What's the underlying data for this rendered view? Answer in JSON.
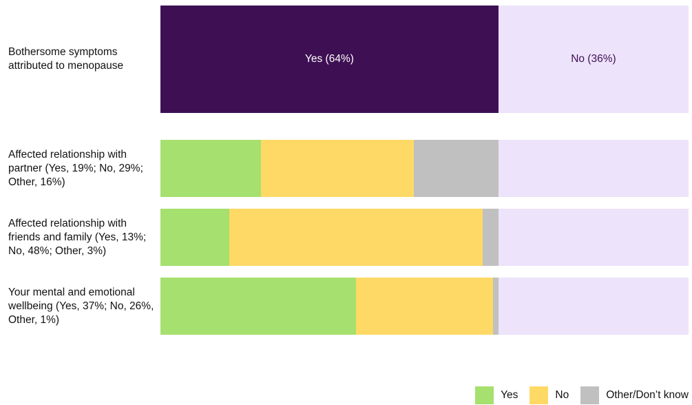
{
  "chart_data": {
    "type": "bar",
    "orientation": "horizontal",
    "xlim": [
      0,
      100
    ],
    "headline": {
      "category": "Bothersome symptoms attributed to menopause",
      "values": [
        64,
        36
      ],
      "value_labels": [
        "Yes (64%)",
        "No (36%)"
      ],
      "colors": [
        "#3e1053",
        "#ede3fa"
      ],
      "label_colors": [
        "#ffffff",
        "#3e1053"
      ]
    },
    "categories": [
      "Affected relationship with partner (Yes, 19%; No, 29%; Other, 16%)",
      "Affected relationship with friends and family (Yes, 13%; No, 48%; Other, 3%)",
      "Your mental and emotional wellbeing (Yes, 37%; No, 26%, Other, 1%)"
    ],
    "series": [
      {
        "name": "Yes",
        "color": "#a6e06e",
        "values": [
          19,
          13,
          37
        ]
      },
      {
        "name": "No",
        "color": "#ffd966",
        "values": [
          29,
          48,
          26
        ]
      },
      {
        "name": "Other/Don’t know",
        "color": "#c0c0c0",
        "values": [
          16,
          3,
          1
        ]
      }
    ]
  }
}
